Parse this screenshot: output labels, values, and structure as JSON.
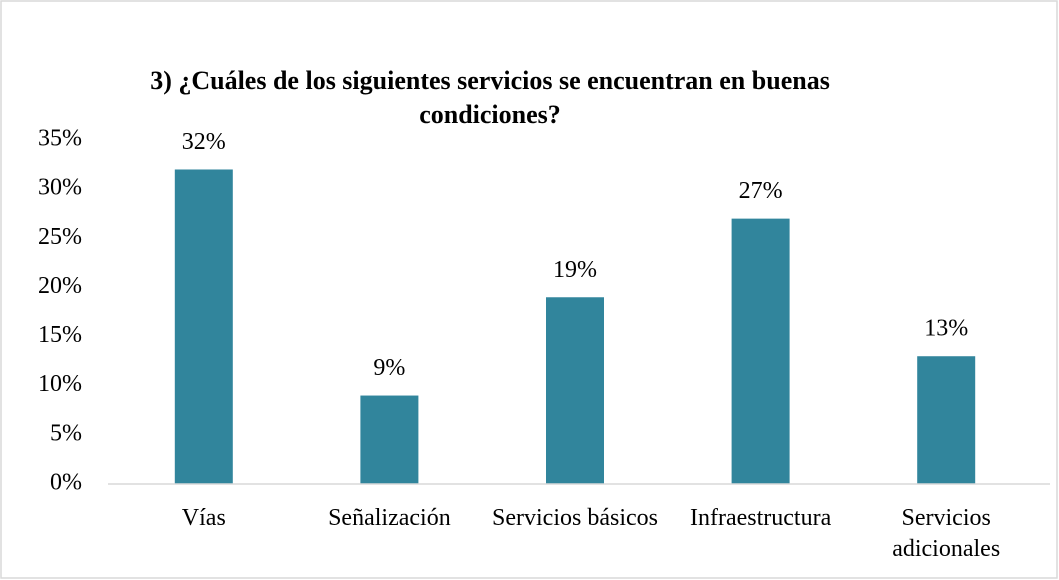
{
  "chart_data": {
    "type": "bar",
    "title": "3) ¿Cuáles de los siguientes servicios se encuentran en buenas condiciones?",
    "categories": [
      "Vías",
      "Señalización",
      "Servicios básicos",
      "Infraestructura",
      "Servicios adicionales"
    ],
    "values": [
      32,
      9,
      19,
      27,
      13
    ],
    "value_labels": [
      "32%",
      "9%",
      "19%",
      "27%",
      "13%"
    ],
    "color": "#31859c",
    "ylim": [
      0,
      35
    ],
    "yticks": [
      {
        "value": 0,
        "label": "0%"
      },
      {
        "value": 5,
        "label": "5%"
      },
      {
        "value": 10,
        "label": "10%"
      },
      {
        "value": 15,
        "label": "15%"
      },
      {
        "value": 20,
        "label": "20%"
      },
      {
        "value": 25,
        "label": "25%"
      },
      {
        "value": 30,
        "label": "30%"
      },
      {
        "value": 35,
        "label": "35%"
      }
    ],
    "grid": false
  }
}
